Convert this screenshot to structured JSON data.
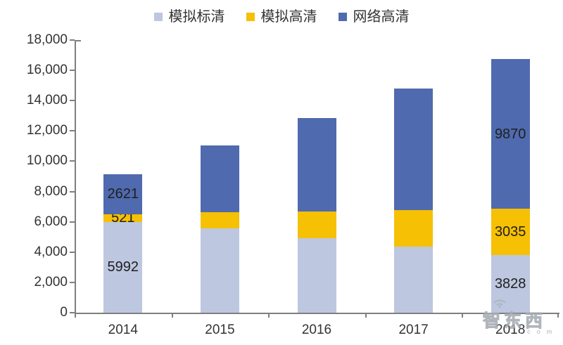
{
  "chart_data": {
    "type": "bar",
    "stacked": true,
    "title": "",
    "categories": [
      "2014",
      "2015",
      "2016",
      "2017",
      "2018"
    ],
    "series": [
      {
        "name": "模拟标清",
        "color": "#BDC7E0",
        "values": [
          5992,
          5550,
          4900,
          4350,
          3828
        ],
        "labels": [
          "5992",
          "",
          "",
          "",
          "3828"
        ]
      },
      {
        "name": "模拟高清",
        "color": "#F6C004",
        "values": [
          521,
          1100,
          1780,
          2430,
          3035
        ],
        "labels": [
          "521",
          "",
          "",
          "",
          "3035"
        ]
      },
      {
        "name": "网络高清",
        "color": "#4F6AAE",
        "values": [
          2621,
          4380,
          6170,
          8040,
          9870
        ],
        "labels": [
          "2621",
          "",
          "",
          "",
          "9870"
        ]
      }
    ],
    "ylim": [
      0,
      18000
    ],
    "ytick_step": 2000,
    "ytick_labels": [
      "0",
      "2,000",
      "4,000",
      "6,000",
      "8,000",
      "10,000",
      "12,000",
      "14,000",
      "16,000",
      "18,000"
    ],
    "grid": false,
    "legend_position": "top",
    "axis_color": "#7f7f7f",
    "label_color": "#333333",
    "data_label_color": "#1f1f1f"
  },
  "watermark": {
    "text": "智东西",
    "suffix": ". c o m",
    "icon": "wifi-icon",
    "color": "#b5bac2"
  }
}
